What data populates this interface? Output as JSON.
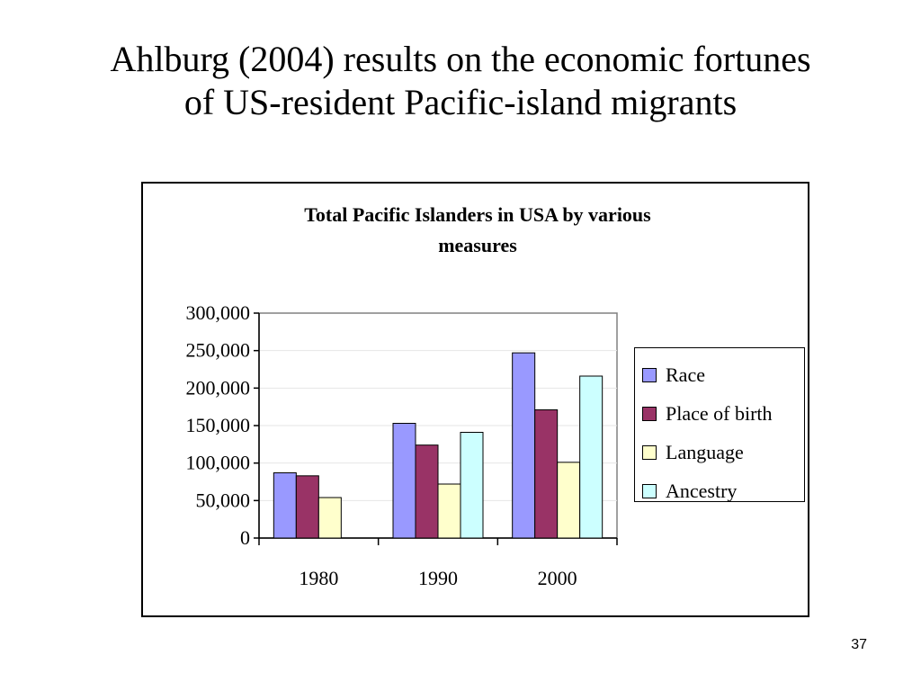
{
  "slide": {
    "title_line1": "Ahlburg (2004) results on the economic fortunes",
    "title_line2": "of US-resident Pacific-island migrants",
    "page_number": "37"
  },
  "chart_data": {
    "type": "bar",
    "title_line1": "Total Pacific Islanders in USA by various",
    "title_line2": "measures",
    "categories": [
      "1980",
      "1990",
      "2000"
    ],
    "series": [
      {
        "name": "Race",
        "color": "#9999FF",
        "values": [
          87000,
          153000,
          247000
        ]
      },
      {
        "name": "Place of birth",
        "color": "#993366",
        "values": [
          83000,
          124000,
          171000
        ]
      },
      {
        "name": "Language",
        "color": "#FFFFCC",
        "values": [
          54000,
          72000,
          101000
        ]
      },
      {
        "name": "Ancestry",
        "color": "#CCFFFF",
        "values": [
          null,
          141000,
          216000
        ]
      }
    ],
    "yticks": [
      "0",
      "50,000",
      "100,000",
      "150,000",
      "200,000",
      "250,000",
      "300,000"
    ],
    "ylim": [
      0,
      300000
    ],
    "grid": true,
    "legend_position": "right"
  }
}
